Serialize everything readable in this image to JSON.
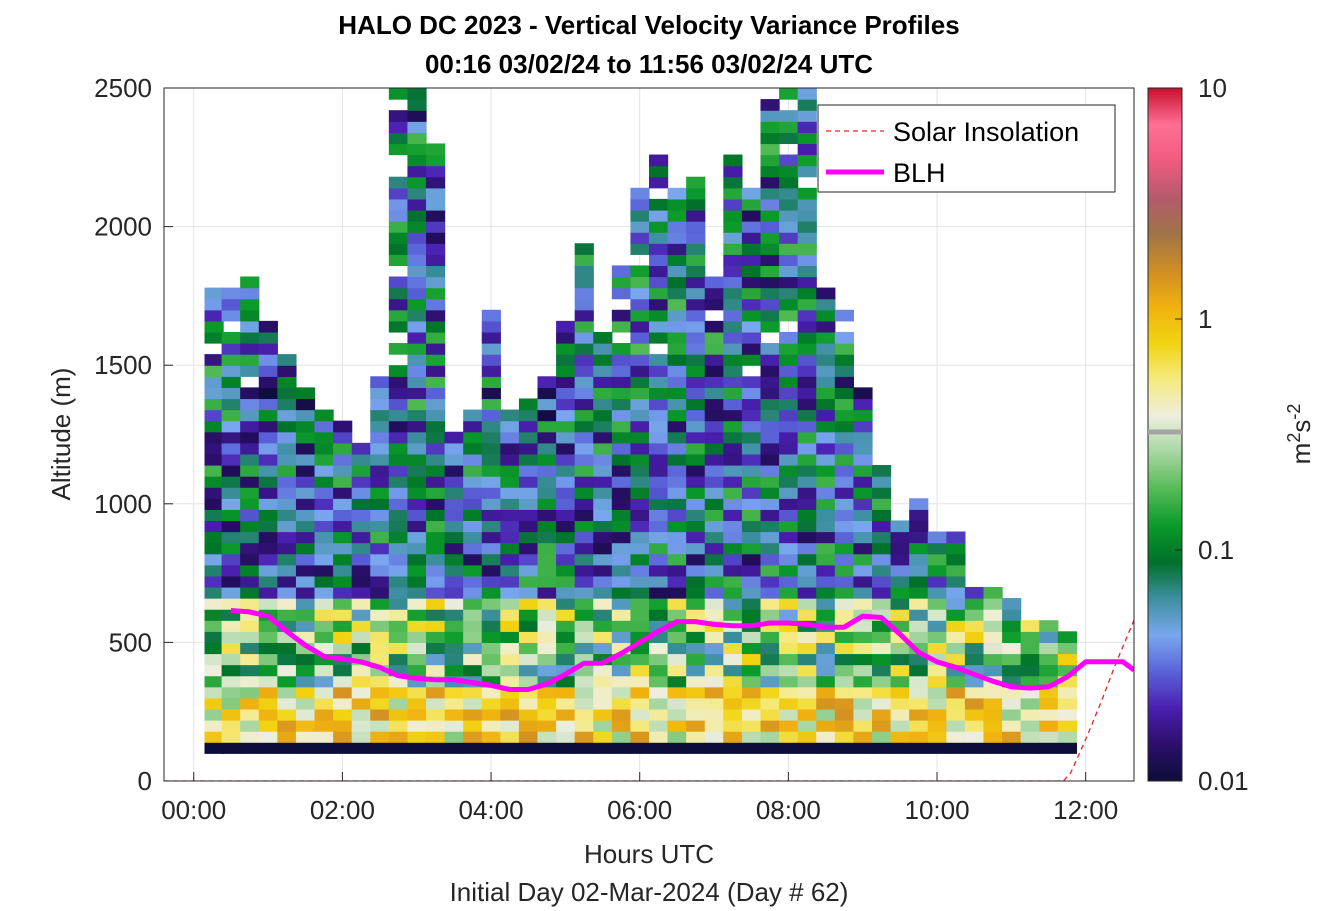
{
  "chart_data": {
    "type": "heatmap",
    "title": "HALO DC 2023 - Vertical Velocity Variance Profiles",
    "subtitle": "00:16 03/02/24 to 11:56 03/02/24  UTC",
    "xlabel": "Hours UTC",
    "xlabel2": "Initial Day 02-Mar-2024 (Day # 62)",
    "ylabel": "Altitude (m)",
    "xlim_hours": [
      -0.4,
      12.65
    ],
    "ylim": [
      0,
      2500
    ],
    "x_ticks": [
      0,
      2,
      4,
      6,
      8,
      10,
      12
    ],
    "x_tick_labels": [
      "00:00",
      "02:00",
      "04:00",
      "06:00",
      "08:00",
      "10:00",
      "12:00"
    ],
    "y_ticks": [
      0,
      500,
      1000,
      1500,
      2000,
      2500
    ],
    "y_tick_labels": [
      "0",
      "500",
      "1000",
      "1500",
      "2000",
      "2500"
    ],
    "grid": true,
    "legend_position": "top-right",
    "legend": [
      {
        "name": "Solar Insolation",
        "style": "dashed",
        "color": "#d62728"
      },
      {
        "name": "BLH",
        "style": "solid",
        "color": "#ff00ff"
      }
    ],
    "colorbar": {
      "label_base": "m",
      "label_sup1": "2",
      "label_mid": "s",
      "label_sup2": "-2",
      "scale": "log",
      "range": [
        0.01,
        10
      ],
      "tick_values": [
        0.01,
        0.1,
        1,
        10
      ],
      "tick_labels": [
        "0.01",
        "0.1",
        "1",
        "10"
      ],
      "colors": [
        "#0d0d3a",
        "#2b0f6a",
        "#4a1fb0",
        "#5a63d8",
        "#79a7ee",
        "#3d8fa0",
        "#00702a",
        "#0a9a2a",
        "#55bb55",
        "#a6d6a1",
        "#eeeede",
        "#f5ea80",
        "#f1d411",
        "#f0b110",
        "#cf8d24",
        "#9f7448",
        "#b45a6c",
        "#f05b80",
        "#ff6f94",
        "#c8102e"
      ]
    },
    "profile_times_hours": [
      0.27,
      0.5,
      0.75,
      1.0,
      1.25,
      1.5,
      1.75,
      2.0,
      2.25,
      2.5,
      2.75,
      3.0,
      3.25,
      3.5,
      3.75,
      4.0,
      4.25,
      4.5,
      4.75,
      5.0,
      5.25,
      5.5,
      5.75,
      6.0,
      6.25,
      6.5,
      6.75,
      7.0,
      7.25,
      7.5,
      7.75,
      8.0,
      8.25,
      8.5,
      8.75,
      9.0,
      9.25,
      9.5,
      9.75,
      10.0,
      10.25,
      10.5,
      10.75,
      11.0,
      11.25,
      11.5,
      11.75
    ],
    "variance_top_altitude_m": [
      1770,
      1770,
      1810,
      1630,
      1530,
      1390,
      1330,
      1290,
      1210,
      1450,
      2500,
      2500,
      2290,
      1250,
      1330,
      1690,
      1330,
      1370,
      1450,
      1650,
      1930,
      1650,
      1850,
      2170,
      2250,
      2130,
      2150,
      1810,
      2250,
      2130,
      2500,
      2500,
      2500,
      1770,
      1690,
      1410,
      1130,
      930,
      1010,
      890,
      870,
      690,
      690,
      650,
      570,
      570,
      510
    ],
    "blh": {
      "name": "BLH",
      "x": [
        0.5,
        0.75,
        1.0,
        1.25,
        1.5,
        1.75,
        2.0,
        2.25,
        2.5,
        2.75,
        3.0,
        3.25,
        3.5,
        3.75,
        4.0,
        4.25,
        4.5,
        4.75,
        5.0,
        5.25,
        5.5,
        5.75,
        6.0,
        6.25,
        6.5,
        6.75,
        7.0,
        7.25,
        7.5,
        7.75,
        8.0,
        8.25,
        8.5,
        8.75,
        9.0,
        9.25,
        9.5,
        9.75,
        10.0,
        10.25,
        10.5,
        10.75,
        11.0,
        11.25,
        11.5,
        11.75,
        12.0,
        12.25,
        12.5,
        12.65
      ],
      "y": [
        615,
        610,
        595,
        540,
        490,
        450,
        440,
        430,
        410,
        380,
        370,
        365,
        365,
        355,
        345,
        330,
        330,
        350,
        385,
        425,
        425,
        460,
        500,
        540,
        575,
        575,
        565,
        560,
        560,
        570,
        570,
        565,
        555,
        555,
        595,
        590,
        530,
        465,
        430,
        410,
        385,
        360,
        340,
        335,
        340,
        375,
        430,
        430,
        430,
        400
      ]
    },
    "solar_insolation": {
      "name": "Solar Insolation",
      "x": [
        -0.4,
        11.7,
        11.8,
        12.0,
        12.2,
        12.4,
        12.65
      ],
      "y": [
        0,
        0,
        30,
        150,
        280,
        420,
        580
      ]
    }
  }
}
